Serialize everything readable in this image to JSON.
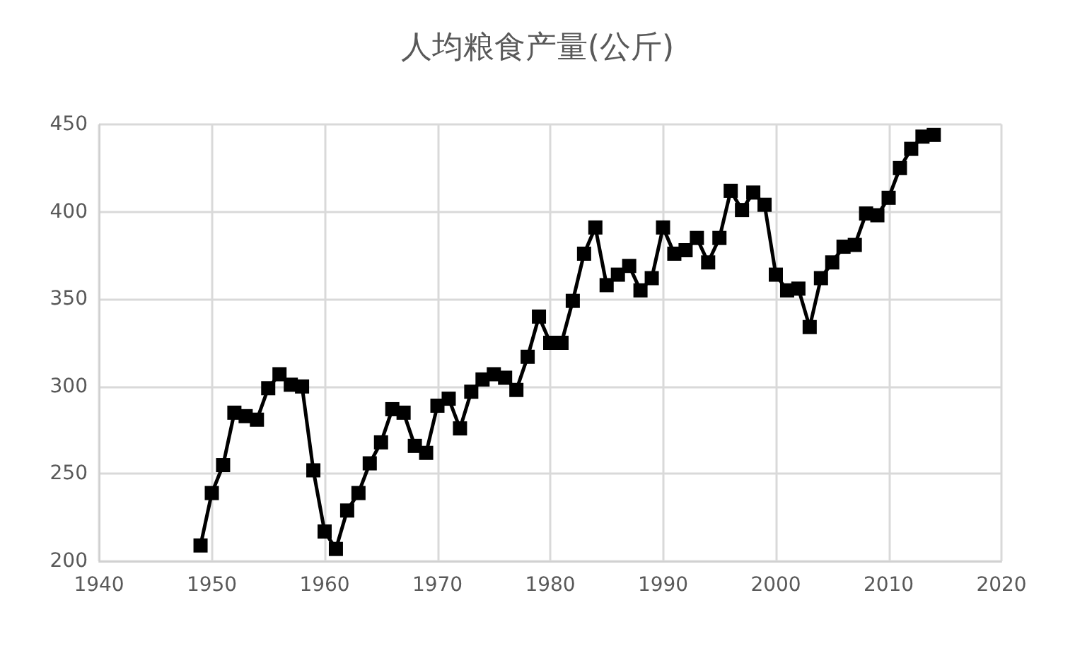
{
  "chart_data": {
    "type": "line",
    "title": "人均粮食产量(公斤)",
    "x": [
      1949,
      1950,
      1951,
      1952,
      1953,
      1954,
      1955,
      1956,
      1957,
      1958,
      1959,
      1960,
      1961,
      1962,
      1963,
      1964,
      1965,
      1966,
      1967,
      1968,
      1969,
      1970,
      1971,
      1972,
      1973,
      1974,
      1975,
      1976,
      1977,
      1978,
      1979,
      1980,
      1981,
      1982,
      1983,
      1984,
      1985,
      1986,
      1987,
      1988,
      1989,
      1990,
      1991,
      1992,
      1993,
      1994,
      1995,
      1996,
      1997,
      1998,
      1999,
      2000,
      2001,
      2002,
      2003,
      2004,
      2005,
      2006,
      2007,
      2008,
      2009,
      2010,
      2011,
      2012,
      2013,
      2014
    ],
    "series": [
      {
        "color": "#000000",
        "values": [
          209,
          239,
          255,
          285,
          283,
          281,
          299,
          307,
          301,
          300,
          252,
          217,
          207,
          229,
          239,
          256,
          268,
          287,
          285,
          266,
          262,
          289,
          293,
          276,
          297,
          304,
          307,
          305,
          298,
          317,
          340,
          325,
          325,
          349,
          376,
          391,
          358,
          364,
          369,
          355,
          362,
          391,
          376,
          378,
          385,
          371,
          385,
          412,
          401,
          411,
          404,
          364,
          355,
          356,
          334,
          362,
          371,
          380,
          381,
          399,
          398,
          408,
          425,
          436,
          443,
          444
        ]
      }
    ],
    "xlim": [
      1940,
      2020
    ],
    "xticks": [
      1940,
      1950,
      1960,
      1970,
      1980,
      1990,
      2000,
      2010,
      2020
    ],
    "ylim": [
      200,
      450
    ],
    "yticks": [
      200,
      250,
      300,
      350,
      400,
      450
    ],
    "grid": true,
    "marker": "square",
    "line_style": "solid"
  }
}
